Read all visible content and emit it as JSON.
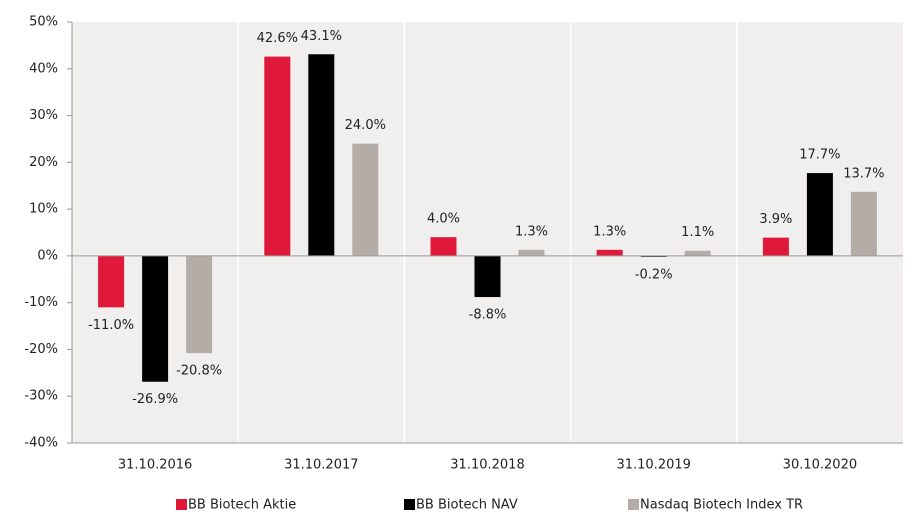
{
  "chart_data": {
    "type": "bar",
    "categories": [
      "31.10.2016",
      "31.10.2017",
      "31.10.2018",
      "31.10.2019",
      "30.10.2020"
    ],
    "series": [
      {
        "name": "BB Biotech Aktie",
        "color": "#e0193a",
        "values": [
          -11.0,
          42.6,
          4.0,
          1.3,
          3.9
        ],
        "value_labels": [
          "-11.0%",
          "42.6%",
          "4.0%",
          "1.3%",
          "3.9%"
        ]
      },
      {
        "name": "BB Biotech NAV",
        "color": "#000000",
        "values": [
          -26.9,
          43.1,
          -8.8,
          -0.2,
          17.7
        ],
        "value_labels": [
          "-26.9%",
          "43.1%",
          "-8.8%",
          "-0.2%",
          "17.7%"
        ]
      },
      {
        "name": "Nasdaq Biotech Index TR",
        "color": "#b4aca6",
        "values": [
          -20.8,
          24.0,
          1.3,
          1.1,
          13.7
        ],
        "value_labels": [
          "-20.8%",
          "24.0%",
          "1.3%",
          "1.1%",
          "13.7%"
        ]
      }
    ],
    "ylim": [
      -40,
      50
    ],
    "yticks": [
      {
        "value": -40,
        "label": "-40%"
      },
      {
        "value": -30,
        "label": "-30%"
      },
      {
        "value": -20,
        "label": "-20%"
      },
      {
        "value": -10,
        "label": "-10%"
      },
      {
        "value": 0,
        "label": "0%"
      },
      {
        "value": 10,
        "label": "10%"
      },
      {
        "value": 20,
        "label": "20%"
      },
      {
        "value": 30,
        "label": "30%"
      },
      {
        "value": 40,
        "label": "40%"
      },
      {
        "value": 50,
        "label": "50%"
      }
    ],
    "legend": "bottom"
  }
}
